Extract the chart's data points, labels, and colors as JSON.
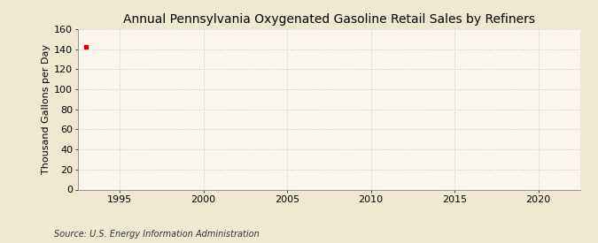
{
  "title": "Annual Pennsylvania Oxygenated Gasoline Retail Sales by Refiners",
  "ylabel": "Thousand Gallons per Day",
  "source": "Source: U.S. Energy Information Administration",
  "fig_bg_color": "#f0e8d0",
  "plot_bg_color": "#faf6ec",
  "xlim": [
    1992.5,
    2022.5
  ],
  "ylim": [
    0,
    160
  ],
  "yticks": [
    0,
    20,
    40,
    60,
    80,
    100,
    120,
    140,
    160
  ],
  "xticks": [
    1995,
    2000,
    2005,
    2010,
    2015,
    2020
  ],
  "data_x": [
    1993
  ],
  "data_y": [
    142
  ],
  "data_color": "#cc0000",
  "grid_color": "#cccccc",
  "title_fontsize": 10,
  "label_fontsize": 8,
  "tick_fontsize": 8,
  "source_fontsize": 7
}
